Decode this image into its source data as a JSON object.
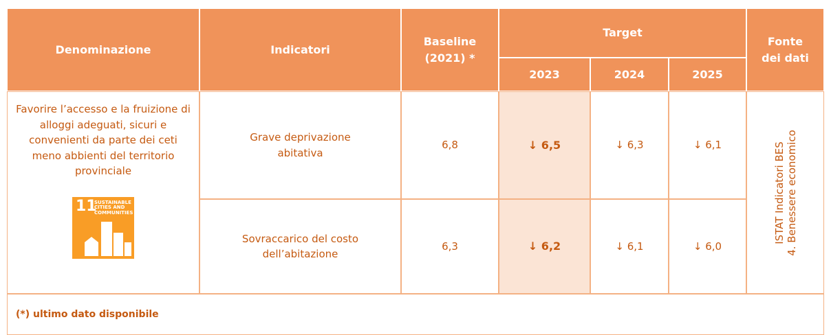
{
  "header": {
    "denominazione": "Denominazione",
    "indicatori": "Indicatori",
    "baseline": "Baseline (2021) *",
    "target": "Target",
    "years": [
      "2023",
      "2024",
      "2025"
    ],
    "fonte": "Fonte dei dati"
  },
  "denominazione": "Favorire l’accesso e la fruizione di alloggi adeguati, sicuri e convenienti da parte dei ceti meno abbienti del territorio provinciale",
  "sdg": {
    "number": "11",
    "label": "SUSTAINABLE CITIES AND COMMUNITIES"
  },
  "rows": [
    {
      "indicatore": "Grave deprivazione abitativa",
      "baseline": "6,8",
      "targets": [
        "↓ 6,5",
        "↓ 6,3",
        "↓ 6,1"
      ]
    },
    {
      "indicatore": "Sovraccarico del costo dell’abitazione",
      "baseline": "6,3",
      "targets": [
        "↓ 6,2",
        "↓ 6,1",
        "↓ 6,0"
      ]
    }
  ],
  "fonte": [
    "ISTAT Indicatori BES",
    "4. Benessere economico"
  ],
  "footnote": "(*) ultimo dato disponibile"
}
